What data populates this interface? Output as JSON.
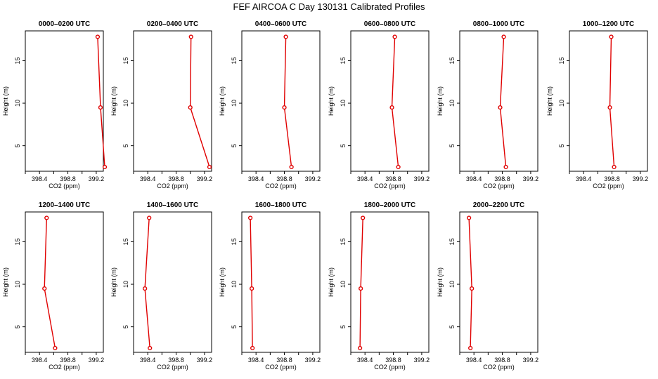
{
  "figure": {
    "title": "FEF AIRCOA C  Day 130131  Calibrated Profiles"
  },
  "chart_data": [
    {
      "type": "line",
      "title": "0000–0200 UTC",
      "xlabel": "CO2 (ppm)",
      "ylabel": "Height (m)",
      "xlim": [
        398.2,
        399.3
      ],
      "ylim": [
        2,
        18.5
      ],
      "xticks": [
        398.4,
        398.8,
        399.2
      ],
      "yticks": [
        5,
        10,
        15
      ],
      "series": [
        {
          "x": [
            399.32,
            399.26,
            399.22
          ],
          "y": [
            2.5,
            9.5,
            17.8
          ]
        }
      ]
    },
    {
      "type": "line",
      "title": "0200–0400 UTC",
      "xlabel": "CO2 (ppm)",
      "ylabel": "Height (m)",
      "xlim": [
        398.2,
        399.3
      ],
      "ylim": [
        2,
        18.5
      ],
      "xticks": [
        398.4,
        398.8,
        399.2
      ],
      "yticks": [
        5,
        10,
        15
      ],
      "series": [
        {
          "x": [
            399.27,
            399.0,
            399.01
          ],
          "y": [
            2.5,
            9.5,
            17.8
          ]
        }
      ]
    },
    {
      "type": "line",
      "title": "0400–0600 UTC",
      "xlabel": "CO2 (ppm)",
      "ylabel": "Height (m)",
      "xlim": [
        398.2,
        399.3
      ],
      "ylim": [
        2,
        18.5
      ],
      "xticks": [
        398.4,
        398.8,
        399.2
      ],
      "yticks": [
        5,
        10,
        15
      ],
      "series": [
        {
          "x": [
            398.9,
            398.8,
            398.82
          ],
          "y": [
            2.5,
            9.5,
            17.8
          ]
        }
      ]
    },
    {
      "type": "line",
      "title": "0600–0800 UTC",
      "xlabel": "CO2 (ppm)",
      "ylabel": "Height (m)",
      "xlim": [
        398.2,
        399.3
      ],
      "ylim": [
        2,
        18.5
      ],
      "xticks": [
        398.4,
        398.8,
        399.2
      ],
      "yticks": [
        5,
        10,
        15
      ],
      "series": [
        {
          "x": [
            398.87,
            398.78,
            398.82
          ],
          "y": [
            2.5,
            9.5,
            17.8
          ]
        }
      ]
    },
    {
      "type": "line",
      "title": "0800–1000 UTC",
      "xlabel": "CO2 (ppm)",
      "ylabel": "Height (m)",
      "xlim": [
        398.2,
        399.3
      ],
      "ylim": [
        2,
        18.5
      ],
      "xticks": [
        398.4,
        398.8,
        399.2
      ],
      "yticks": [
        5,
        10,
        15
      ],
      "series": [
        {
          "x": [
            398.85,
            398.77,
            398.82
          ],
          "y": [
            2.5,
            9.5,
            17.8
          ]
        }
      ]
    },
    {
      "type": "line",
      "title": "1000–1200 UTC",
      "xlabel": "CO2 (ppm)",
      "ylabel": "Height (m)",
      "xlim": [
        398.2,
        399.3
      ],
      "ylim": [
        2,
        18.5
      ],
      "xticks": [
        398.4,
        398.8,
        399.2
      ],
      "yticks": [
        5,
        10,
        15
      ],
      "series": [
        {
          "x": [
            398.83,
            398.77,
            398.79
          ],
          "y": [
            2.5,
            9.5,
            17.8
          ]
        }
      ]
    },
    {
      "type": "line",
      "title": "1200–1400 UTC",
      "xlabel": "CO2 (ppm)",
      "ylabel": "Height (m)",
      "xlim": [
        398.2,
        399.3
      ],
      "ylim": [
        2,
        18.5
      ],
      "xticks": [
        398.4,
        398.8,
        399.2
      ],
      "yticks": [
        5,
        10,
        15
      ],
      "series": [
        {
          "x": [
            398.62,
            398.47,
            398.5
          ],
          "y": [
            2.5,
            9.5,
            17.8
          ]
        }
      ]
    },
    {
      "type": "line",
      "title": "1400–1600 UTC",
      "xlabel": "CO2 (ppm)",
      "ylabel": "Height (m)",
      "xlim": [
        398.2,
        399.3
      ],
      "ylim": [
        2,
        18.5
      ],
      "xticks": [
        398.4,
        398.8,
        399.2
      ],
      "yticks": [
        5,
        10,
        15
      ],
      "series": [
        {
          "x": [
            398.43,
            398.36,
            398.42
          ],
          "y": [
            2.5,
            9.5,
            17.8
          ]
        }
      ]
    },
    {
      "type": "line",
      "title": "1600–1800 UTC",
      "xlabel": "CO2 (ppm)",
      "ylabel": "Height (m)",
      "xlim": [
        398.2,
        399.3
      ],
      "ylim": [
        2,
        18.5
      ],
      "xticks": [
        398.4,
        398.8,
        399.2
      ],
      "yticks": [
        5,
        10,
        15
      ],
      "series": [
        {
          "x": [
            398.35,
            398.34,
            398.32
          ],
          "y": [
            2.5,
            9.5,
            17.8
          ]
        }
      ]
    },
    {
      "type": "line",
      "title": "1800–2000 UTC",
      "xlabel": "CO2 (ppm)",
      "ylabel": "Height (m)",
      "xlim": [
        398.2,
        399.3
      ],
      "ylim": [
        2,
        18.5
      ],
      "xticks": [
        398.4,
        398.8,
        399.2
      ],
      "yticks": [
        5,
        10,
        15
      ],
      "series": [
        {
          "x": [
            398.33,
            398.34,
            398.37
          ],
          "y": [
            2.5,
            9.5,
            17.8
          ]
        }
      ]
    },
    {
      "type": "line",
      "title": "2000–2200 UTC",
      "xlabel": "CO2 (ppm)",
      "ylabel": "Height (m)",
      "xlim": [
        398.2,
        399.3
      ],
      "ylim": [
        2,
        18.5
      ],
      "xticks": [
        398.4,
        398.8,
        399.2
      ],
      "yticks": [
        5,
        10,
        15
      ],
      "series": [
        {
          "x": [
            398.35,
            398.37,
            398.33
          ],
          "y": [
            2.5,
            9.5,
            17.8
          ]
        }
      ]
    }
  ]
}
